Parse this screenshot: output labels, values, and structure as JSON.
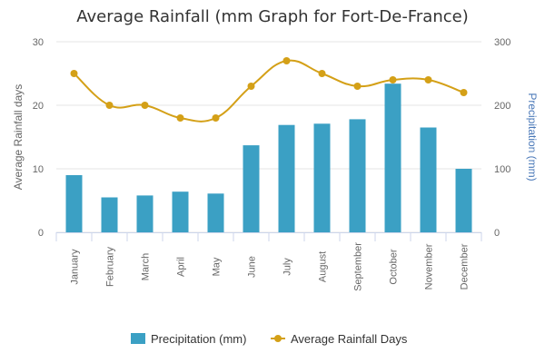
{
  "chart_data": {
    "type": "bar+line",
    "title": "Average Rainfall (mm Graph for Fort-De-France)",
    "categories": [
      "January",
      "February",
      "March",
      "April",
      "May",
      "June",
      "July",
      "August",
      "September",
      "October",
      "November",
      "December"
    ],
    "series": [
      {
        "name": "Precipitation (mm)",
        "type": "bar",
        "axis": "right",
        "color": "#3ba0c4",
        "values": [
          90,
          55,
          58,
          64,
          61,
          137,
          169,
          171,
          178,
          234,
          165,
          100
        ]
      },
      {
        "name": "Average Rainfall Days",
        "type": "line",
        "axis": "left",
        "color": "#d4a017",
        "values": [
          25,
          20,
          20,
          18,
          18,
          23,
          27,
          25,
          23,
          24,
          24,
          22
        ]
      }
    ],
    "y_left": {
      "label": "Average Rainfall days",
      "min": 0,
      "max": 30,
      "ticks": [
        0,
        10,
        20,
        30
      ]
    },
    "y_right": {
      "label": "Precipitation (mm)",
      "min": 0,
      "max": 300,
      "ticks": [
        0,
        100,
        200,
        300
      ],
      "label_color": "#4a78b8"
    },
    "grid": true,
    "legend_position": "bottom"
  }
}
